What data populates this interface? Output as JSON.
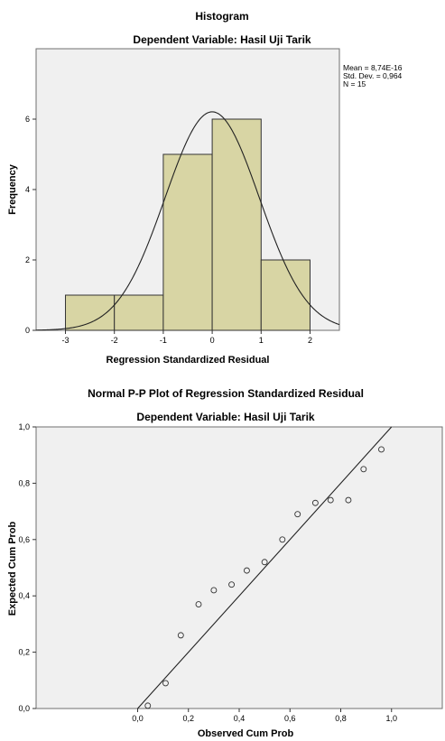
{
  "chart_data": [
    {
      "type": "bar",
      "title": "Histogram",
      "subtitle": "Dependent Variable: Hasil Uji Tarik",
      "xlabel": "Regression Standardized Residual",
      "ylabel": "Frequency",
      "bins": [
        {
          "from": -3,
          "to": -2,
          "count": 1
        },
        {
          "from": -2,
          "to": -1,
          "count": 1
        },
        {
          "from": -1,
          "to": 0,
          "count": 5
        },
        {
          "from": 0,
          "to": 1,
          "count": 6
        },
        {
          "from": 1,
          "to": 2,
          "count": 2
        }
      ],
      "xlim": [
        -3.6,
        2.6
      ],
      "ylim": [
        0,
        8
      ],
      "x_ticks": [
        -3,
        -2,
        -1,
        0,
        1,
        2
      ],
      "y_ticks": [
        0,
        2,
        4,
        6
      ],
      "normal_curve": {
        "mean": 0.0,
        "std": 0.964,
        "n": 15,
        "bin_width": 1
      },
      "stats": [
        "Mean = 8,74E-16",
        "Std. Dev. = 0,964",
        "N = 15"
      ],
      "bar_color": "#d8d5a4",
      "plot_bg": "#f0f0f0",
      "grid": false
    },
    {
      "type": "scatter",
      "title": "Normal P-P Plot of Regression Standardized Residual",
      "subtitle": "Dependent Variable: Hasil Uji Tarik",
      "xlabel": "Observed Cum Prob",
      "ylabel": "Expected Cum Prob",
      "xlim": [
        -0.4,
        1.2
      ],
      "ylim": [
        0,
        1
      ],
      "x_ticks": [
        "0,0",
        "0,2",
        "0,4",
        "0,6",
        "0,8",
        "1,0"
      ],
      "y_ticks": [
        "0,0",
        "0,2",
        "0,4",
        "0,6",
        "0,8",
        "1,0"
      ],
      "tick_values": [
        0,
        0.2,
        0.4,
        0.6,
        0.8,
        1.0
      ],
      "points": [
        {
          "x": 0.04,
          "y": 0.01
        },
        {
          "x": 0.11,
          "y": 0.09
        },
        {
          "x": 0.17,
          "y": 0.26
        },
        {
          "x": 0.24,
          "y": 0.37
        },
        {
          "x": 0.3,
          "y": 0.42
        },
        {
          "x": 0.37,
          "y": 0.44
        },
        {
          "x": 0.43,
          "y": 0.49
        },
        {
          "x": 0.5,
          "y": 0.52
        },
        {
          "x": 0.57,
          "y": 0.6
        },
        {
          "x": 0.63,
          "y": 0.69
        },
        {
          "x": 0.7,
          "y": 0.73
        },
        {
          "x": 0.76,
          "y": 0.74
        },
        {
          "x": 0.83,
          "y": 0.74
        },
        {
          "x": 0.89,
          "y": 0.85
        },
        {
          "x": 0.96,
          "y": 0.92
        }
      ],
      "reference_line": {
        "from": [
          0,
          0
        ],
        "to": [
          1,
          1
        ]
      },
      "plot_bg": "#f0f0f0",
      "grid": false
    }
  ]
}
